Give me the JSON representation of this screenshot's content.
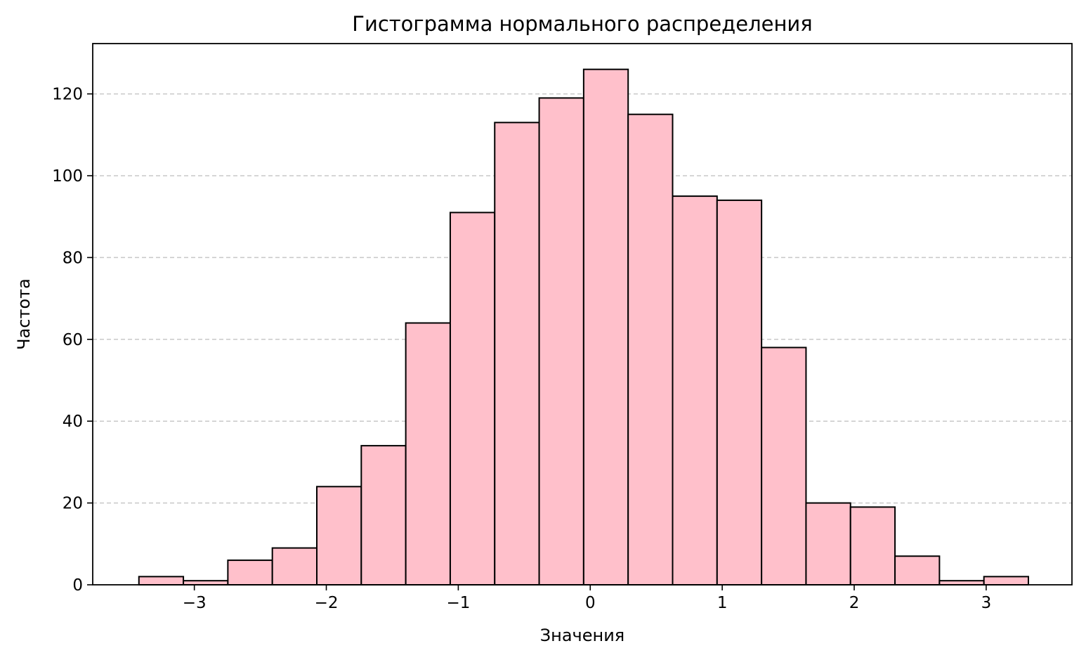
{
  "chart_data": {
    "type": "histogram",
    "title": "Гистограмма нормального распределения",
    "xlabel": "Значения",
    "ylabel": "Частота",
    "xlim": [
      -3.77,
      3.65
    ],
    "ylim": [
      0,
      132.3
    ],
    "bin_edges": [
      -3.42,
      -3.083,
      -2.746,
      -2.409,
      -2.072,
      -1.735,
      -1.398,
      -1.061,
      -0.724,
      -0.387,
      -0.05,
      0.287,
      0.624,
      0.961,
      1.298,
      1.635,
      1.972,
      2.309,
      2.646,
      2.983,
      3.32
    ],
    "values": [
      2,
      1,
      6,
      9,
      24,
      34,
      64,
      91,
      113,
      119,
      126,
      115,
      95,
      94,
      58,
      20,
      19,
      7,
      1,
      2
    ],
    "x_ticks": [
      -3,
      -2,
      -1,
      0,
      1,
      2,
      3
    ],
    "x_tick_labels": [
      "−3",
      "−2",
      "−1",
      "0",
      "1",
      "2",
      "3"
    ],
    "y_ticks": [
      0,
      20,
      40,
      60,
      80,
      100,
      120
    ],
    "y_tick_labels": [
      "0",
      "20",
      "40",
      "60",
      "80",
      "100",
      "120"
    ],
    "grid": "y-axis, dashed",
    "colors": {
      "bar_fill": "#ffc0cb",
      "bar_edge": "#000000",
      "grid": "#c8c8c8"
    }
  }
}
